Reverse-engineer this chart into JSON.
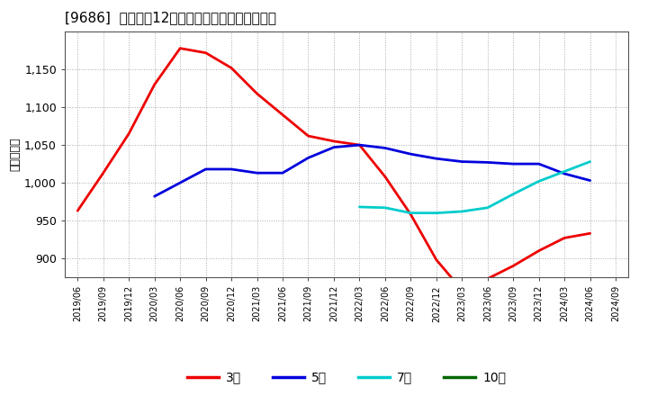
{
  "title": "[9686]  経常利益12か月移動合計の平均値の推移",
  "ylabel": "（百万円）",
  "background_color": "#ffffff",
  "plot_bg_color": "#ffffff",
  "grid_color": "#aaaaaa",
  "ylim": [
    875,
    1200
  ],
  "yticks": [
    900,
    950,
    1000,
    1050,
    1100,
    1150
  ],
  "series": {
    "3年": {
      "color": "#ee0000",
      "x": [
        "2019/06",
        "2019/09",
        "2019/12",
        "2020/03",
        "2020/06",
        "2020/09",
        "2020/12",
        "2021/03",
        "2021/06",
        "2021/09",
        "2021/12",
        "2022/03",
        "2022/06",
        "2022/09",
        "2022/12",
        "2023/03",
        "2023/06",
        "2023/09",
        "2023/12",
        "2024/03",
        "2024/06"
      ],
      "y": [
        963,
        1013,
        1065,
        1130,
        1178,
        1172,
        1152,
        1118,
        1090,
        1062,
        1055,
        1050,
        1008,
        958,
        898,
        858,
        873,
        890,
        910,
        927,
        933
      ]
    },
    "5年": {
      "color": "#0000dd",
      "x": [
        "2020/03",
        "2020/06",
        "2020/09",
        "2020/12",
        "2021/03",
        "2021/06",
        "2021/09",
        "2021/12",
        "2022/03",
        "2022/06",
        "2022/09",
        "2022/12",
        "2023/03",
        "2023/06",
        "2023/09",
        "2023/12",
        "2024/03",
        "2024/06"
      ],
      "y": [
        982,
        1000,
        1018,
        1018,
        1013,
        1013,
        1033,
        1047,
        1050,
        1046,
        1038,
        1032,
        1028,
        1027,
        1025,
        1025,
        1012,
        1003
      ]
    },
    "7年": {
      "color": "#00cccc",
      "x": [
        "2022/03",
        "2022/06",
        "2022/09",
        "2022/12",
        "2023/03",
        "2023/06",
        "2023/09",
        "2023/12",
        "2024/03",
        "2024/06"
      ],
      "y": [
        968,
        967,
        960,
        960,
        962,
        967,
        985,
        1002,
        1015,
        1028
      ]
    },
    "10年": {
      "color": "#006600",
      "x": [],
      "y": []
    }
  },
  "xtick_labels": [
    "2019/06",
    "2019/09",
    "2019/12",
    "2020/03",
    "2020/06",
    "2020/09",
    "2020/12",
    "2021/03",
    "2021/06",
    "2021/09",
    "2021/12",
    "2022/03",
    "2022/06",
    "2022/09",
    "2022/12",
    "2023/03",
    "2023/06",
    "2023/09",
    "2023/12",
    "2024/03",
    "2024/06",
    "2024/09"
  ],
  "legend_labels": [
    "3年",
    "5年",
    "7年",
    "10年"
  ],
  "legend_colors": [
    "#ee0000",
    "#0000dd",
    "#00cccc",
    "#006600"
  ]
}
